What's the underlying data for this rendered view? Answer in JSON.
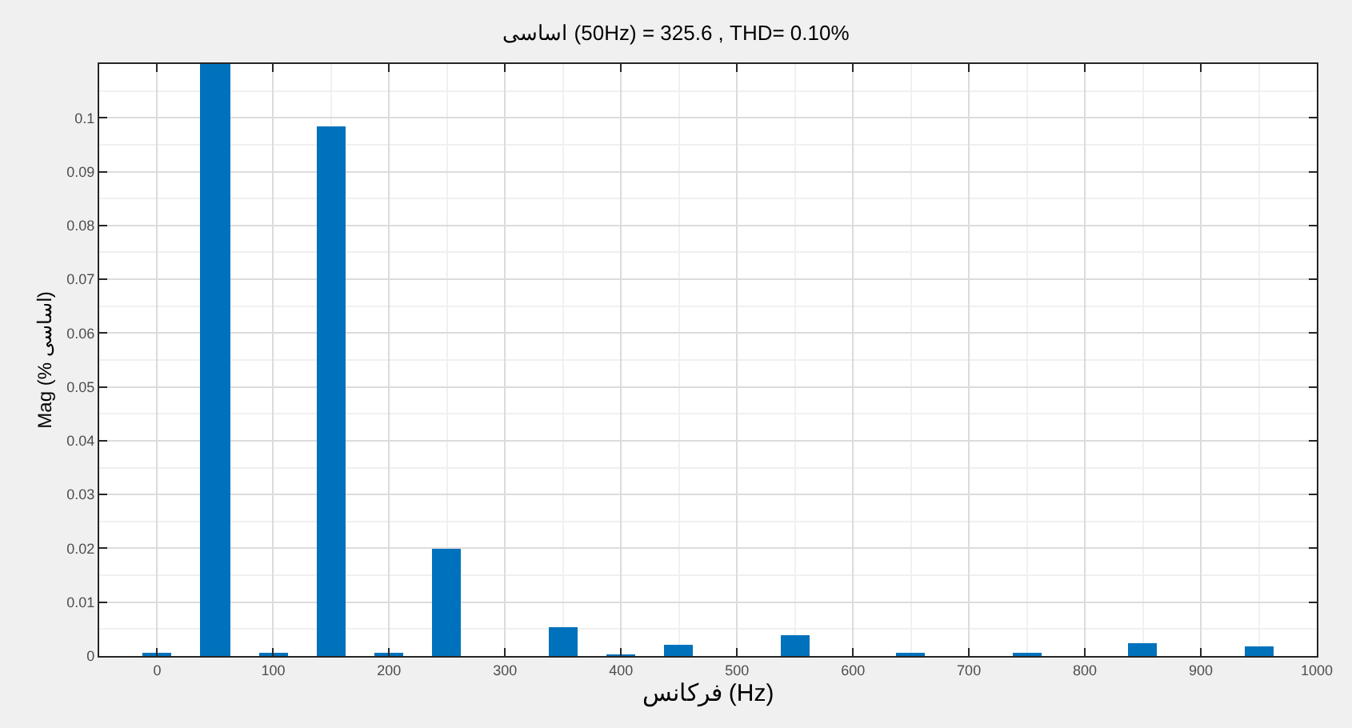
{
  "chart_data": {
    "type": "bar",
    "title": "اساسی (50Hz) = 325.6 , THD= 0.10%",
    "xlabel": "فرکانس (Hz)",
    "ylabel": "Mag (% اساسی)",
    "x": [
      0,
      50,
      100,
      150,
      200,
      250,
      300,
      350,
      400,
      450,
      500,
      550,
      600,
      650,
      700,
      750,
      800,
      850,
      900,
      950
    ],
    "values": [
      0.0003,
      0.11,
      0.0005,
      0.0985,
      0.0003,
      0.02,
      0,
      0.0055,
      0.0002,
      0.0022,
      0,
      0.0038,
      0,
      0.0004,
      0,
      0.0003,
      0,
      0.0025,
      0,
      0.0018
    ],
    "color": "#0072bd",
    "xlim": [
      -50,
      1000
    ],
    "ylim": [
      0,
      0.11
    ],
    "xticks": [
      0,
      100,
      200,
      300,
      400,
      500,
      600,
      700,
      800,
      900,
      1000
    ],
    "yticks": [
      0,
      0.01,
      0.02,
      0.03,
      0.04,
      0.05,
      0.06,
      0.07,
      0.08,
      0.09,
      0.1
    ],
    "grid": true
  }
}
